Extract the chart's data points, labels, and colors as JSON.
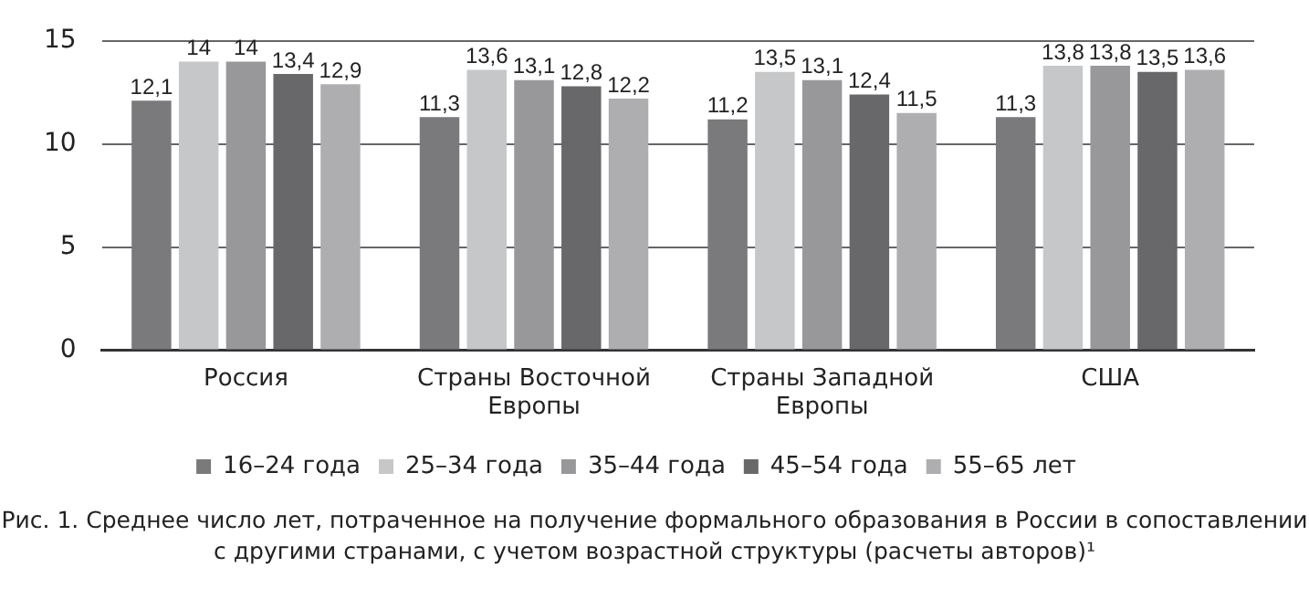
{
  "chart_data": {
    "type": "bar",
    "categories": [
      "Россия",
      "Страны Восточной Европы",
      "Страны Западной Европы",
      "США"
    ],
    "series": [
      {
        "name": "16–24 года",
        "color": "#7a7a7c",
        "values": [
          12.1,
          11.3,
          11.2,
          11.3
        ],
        "value_labels": [
          "12,1",
          "11,3",
          "11,2",
          "11,3"
        ]
      },
      {
        "name": "25–34 года",
        "color": "#c6c7c9",
        "values": [
          14,
          13.6,
          13.5,
          13.8
        ],
        "value_labels": [
          "14",
          "13,6",
          "13,5",
          "13,8"
        ]
      },
      {
        "name": "35–44 года",
        "color": "#98989a",
        "values": [
          14,
          13.1,
          13.1,
          13.8
        ],
        "value_labels": [
          "14",
          "13,1",
          "13,1",
          "13,8"
        ]
      },
      {
        "name": "45–54 года",
        "color": "#68686b",
        "values": [
          13.4,
          12.8,
          12.4,
          13.5
        ],
        "value_labels": [
          "13,4",
          "12,8",
          "12,4",
          "13,5"
        ]
      },
      {
        "name": "55–65 лет",
        "color": "#aeaeb0",
        "values": [
          12.9,
          12.2,
          11.5,
          13.6
        ],
        "value_labels": [
          "12,9",
          "12,2",
          "11,5",
          "13,6"
        ]
      }
    ],
    "ylim": [
      0,
      15
    ],
    "yticks": [
      0,
      5,
      10,
      15
    ],
    "grid": "y",
    "legend": "bottom",
    "annotations": [
      "Рис. 1. Среднее число лет, потраченное на получение формального образования в России в сопоставлении с другими странами, с учетом возрастной структуры (расчеты авторов)¹"
    ]
  }
}
